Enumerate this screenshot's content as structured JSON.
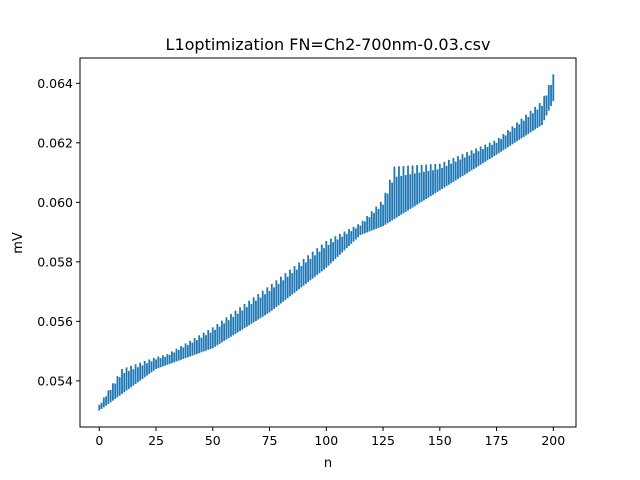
{
  "chart_data": {
    "type": "line",
    "title": "L1optimization FN=Ch2-700nm-0.03.csv",
    "xlabel": "n",
    "ylabel": "mV",
    "xlim": [
      -8.5,
      210
    ],
    "ylim": [
      0.05245,
      0.06485
    ],
    "x_ticks": [
      0,
      25,
      50,
      75,
      100,
      125,
      150,
      175,
      200
    ],
    "y_ticks": [
      0.054,
      0.056,
      0.058,
      0.06,
      0.062,
      0.064
    ],
    "y_tick_labels": [
      "0.054",
      "0.056",
      "0.058",
      "0.060",
      "0.062",
      "0.064"
    ],
    "series_color": "#1f77b4",
    "grid": false,
    "legend": "none",
    "series": [
      {
        "style": "vertical range bars",
        "x_step": 1,
        "x_start": 0,
        "x_end": 200,
        "centerline": {
          "x": [
            0,
            25,
            50,
            75,
            100,
            115,
            125,
            128,
            150,
            175,
            195,
            200
          ],
          "y": [
            0.0532,
            0.0545,
            0.0554,
            0.0566,
            0.058,
            0.059,
            0.0596,
            0.0599,
            0.0609,
            0.0619,
            0.0628,
            0.0635
          ]
        },
        "upper_envelope": {
          "x": [
            0,
            10,
            25,
            30,
            50,
            75,
            100,
            115,
            125,
            130,
            150,
            175,
            195,
            200
          ],
          "y": [
            0.0532,
            0.0544,
            0.0548,
            0.0549,
            0.0558,
            0.0572,
            0.0587,
            0.0593,
            0.0601,
            0.0612,
            0.0613,
            0.0621,
            0.0634,
            0.0643
          ]
        },
        "lower_envelope": {
          "x": [
            0,
            25,
            50,
            75,
            100,
            115,
            125,
            150,
            175,
            195,
            200
          ],
          "y": [
            0.053,
            0.0544,
            0.0551,
            0.0563,
            0.0578,
            0.0589,
            0.0592,
            0.0604,
            0.0616,
            0.0626,
            0.0634
          ]
        }
      }
    ]
  }
}
